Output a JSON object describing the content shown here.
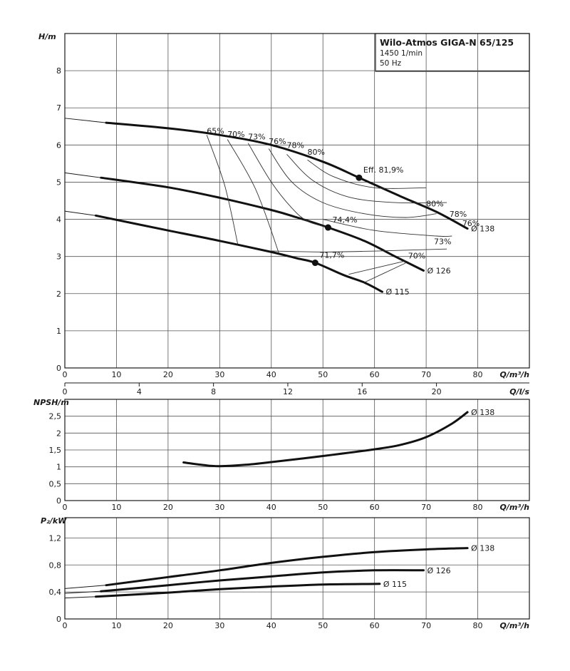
{
  "title_box": {
    "title": "Wilo-Atmos GIGA-N 65/125",
    "speed": "1450 1/min",
    "frequency": "50 Hz"
  },
  "chart_data": [
    {
      "type": "line",
      "name": "head",
      "ylabel": "H/m",
      "xlabel": "Q/m³/h",
      "xlim": [
        0,
        90
      ],
      "ylim": [
        0,
        9
      ],
      "xticks": [
        0,
        10,
        20,
        30,
        40,
        50,
        60,
        70,
        80
      ],
      "yticks": [
        0,
        1,
        2,
        3,
        4,
        5,
        6,
        7,
        8
      ],
      "secondary_x": {
        "label": "Q/l/s",
        "ticks": [
          0,
          4,
          8,
          12,
          16,
          20
        ]
      },
      "series": [
        {
          "name": "Ø 138",
          "ext": [
            [
              0,
              6.72
            ],
            [
              8,
              6.6
            ]
          ],
          "x": [
            8,
            20,
            30,
            40,
            50,
            57,
            65,
            72,
            78
          ],
          "y": [
            6.6,
            6.45,
            6.27,
            6.0,
            5.55,
            5.12,
            4.62,
            4.2,
            3.75
          ]
        },
        {
          "name": "Ø 126",
          "ext": [
            [
              0,
              5.25
            ],
            [
              7,
              5.12
            ]
          ],
          "x": [
            7,
            20,
            30,
            40,
            45,
            51,
            58,
            64,
            69.5
          ],
          "y": [
            5.12,
            4.86,
            4.58,
            4.25,
            4.05,
            3.78,
            3.42,
            3.0,
            2.62
          ]
        },
        {
          "name": "Ø 115",
          "ext": [
            [
              0,
              4.22
            ],
            [
              6,
              4.1
            ]
          ],
          "x": [
            6,
            20,
            30,
            40,
            45,
            48.5,
            54,
            58,
            61.5
          ],
          "y": [
            4.1,
            3.7,
            3.42,
            3.12,
            2.95,
            2.83,
            2.5,
            2.3,
            2.05
          ]
        }
      ],
      "efficiency_labels": [
        "65%",
        "70%",
        "73%",
        "76%",
        "78%",
        "80%",
        "80%",
        "78%",
        "76%",
        "73%",
        "70%"
      ],
      "efficiency_label_pos": [
        [
          27.5,
          6.3
        ],
        [
          31.5,
          6.22
        ],
        [
          35.5,
          6.15
        ],
        [
          39.5,
          6.03
        ],
        [
          43,
          5.92
        ],
        [
          47,
          5.74
        ],
        [
          70,
          4.35
        ],
        [
          74.5,
          4.07
        ],
        [
          77,
          3.82
        ],
        [
          71.5,
          3.33
        ],
        [
          66.5,
          2.95
        ]
      ],
      "best_efficiency_points": [
        {
          "label": "Eff. 81,9%",
          "x": 57,
          "y": 5.12
        },
        {
          "label": "74,4%",
          "x": 51,
          "y": 3.78
        },
        {
          "label": "71,7%",
          "x": 48.5,
          "y": 2.83
        }
      ]
    },
    {
      "type": "line",
      "name": "npsh",
      "ylabel": "NPSH/m",
      "xlabel": "Q/m³/h",
      "xlim": [
        0,
        90
      ],
      "ylim": [
        0,
        3
      ],
      "xticks": [
        0,
        10,
        20,
        30,
        40,
        50,
        60,
        70,
        80
      ],
      "yticks": [
        "0",
        "0,5",
        "1",
        "1,5",
        "2",
        "2,5"
      ],
      "series": [
        {
          "name": "Ø 138",
          "x": [
            23,
            27,
            30,
            35,
            40,
            50,
            60,
            65,
            70,
            75,
            78
          ],
          "y": [
            1.13,
            1.05,
            1.02,
            1.06,
            1.14,
            1.32,
            1.52,
            1.65,
            1.88,
            2.28,
            2.62
          ]
        }
      ]
    },
    {
      "type": "line",
      "name": "power",
      "ylabel": "P₂/kW",
      "xlabel": "Q/m³/h",
      "xlim": [
        0,
        90
      ],
      "ylim": [
        0,
        1.5
      ],
      "xticks": [
        0,
        10,
        20,
        30,
        40,
        50,
        60,
        70,
        80
      ],
      "yticks": [
        "0",
        "0,4",
        "0,8",
        "1,2"
      ],
      "series": [
        {
          "name": "Ø 138",
          "ext": [
            [
              0,
              0.45
            ],
            [
              8,
              0.5
            ]
          ],
          "x": [
            8,
            20,
            30,
            40,
            50,
            60,
            70,
            78
          ],
          "y": [
            0.5,
            0.62,
            0.72,
            0.83,
            0.92,
            0.99,
            1.03,
            1.05
          ]
        },
        {
          "name": "Ø 126",
          "ext": [
            [
              0,
              0.38
            ],
            [
              7,
              0.41
            ]
          ],
          "x": [
            7,
            20,
            30,
            40,
            50,
            60,
            69.5
          ],
          "y": [
            0.41,
            0.5,
            0.57,
            0.63,
            0.69,
            0.72,
            0.72
          ]
        },
        {
          "name": "Ø 115",
          "ext": [
            [
              0,
              0.31
            ],
            [
              6,
              0.33
            ]
          ],
          "x": [
            6,
            20,
            30,
            40,
            50,
            61
          ],
          "y": [
            0.33,
            0.39,
            0.44,
            0.48,
            0.51,
            0.52
          ]
        }
      ]
    }
  ]
}
